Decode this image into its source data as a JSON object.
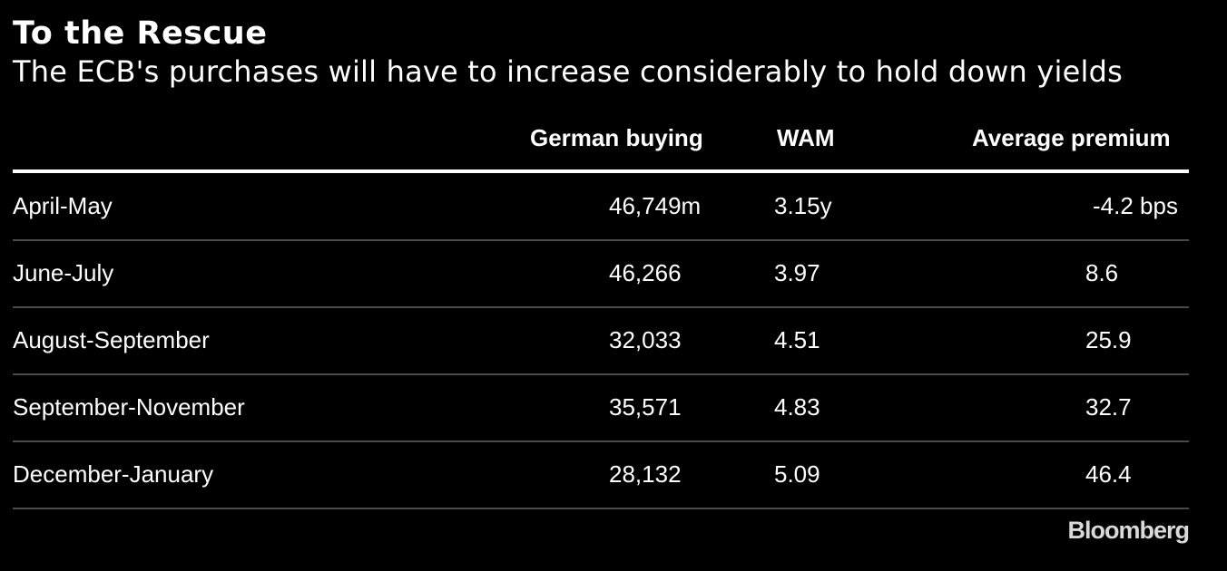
{
  "chart_data": {
    "type": "table",
    "title": "To the Rescue",
    "subtitle": "The ECB's purchases will have to increase considerably to hold down yields",
    "columns": [
      "",
      "German buying",
      "WAM",
      "Average premium"
    ],
    "rows": [
      {
        "period": "April-May",
        "buying": "46,749m",
        "wam": "3.15y",
        "premium": "-4.2 bps"
      },
      {
        "period": "June-July",
        "buying": "46,266",
        "wam": "3.97",
        "premium": "8.6"
      },
      {
        "period": "August-September",
        "buying": "32,033",
        "wam": "4.51",
        "premium": "25.9"
      },
      {
        "period": "September-November",
        "buying": "35,571",
        "wam": "4.83",
        "premium": "32.7"
      },
      {
        "period": "December-January",
        "buying": "28,132",
        "wam": "5.09",
        "premium": "46.4"
      }
    ]
  },
  "source_logo": "Bloomberg",
  "colors": {
    "background": "#000000",
    "text": "#ffffff",
    "rule": "#4a4a4a",
    "logo": "#d9d9d9"
  }
}
